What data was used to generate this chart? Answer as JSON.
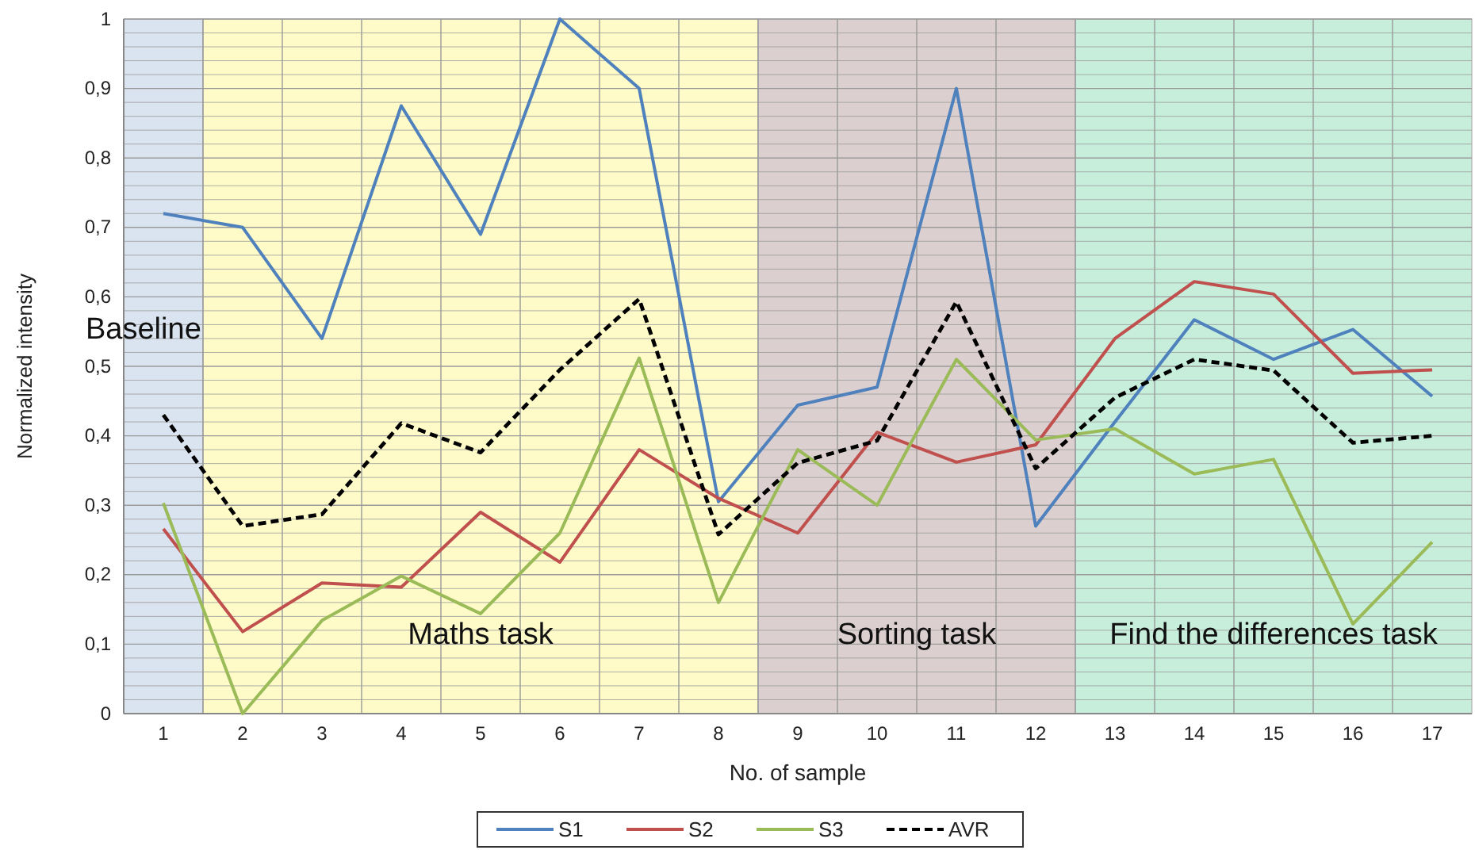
{
  "chart_data": {
    "type": "line",
    "xlabel": "No. of sample",
    "ylabel": "Normalized intensity",
    "x": [
      1,
      2,
      3,
      4,
      5,
      6,
      7,
      8,
      9,
      10,
      11,
      12,
      13,
      14,
      15,
      16,
      17
    ],
    "xlim": [
      0.5,
      17.5
    ],
    "xticks": [
      1,
      2,
      3,
      4,
      5,
      6,
      7,
      8,
      9,
      10,
      11,
      12,
      13,
      14,
      15,
      16,
      17
    ],
    "ylim": [
      0,
      1
    ],
    "yticks": [
      0,
      {
        "value": 0.1,
        "label": "0,1"
      },
      {
        "value": 0.2,
        "label": "0,2"
      },
      {
        "value": 0.3,
        "label": "0,3"
      },
      {
        "value": 0.4,
        "label": "0,4"
      },
      {
        "value": 0.5,
        "label": "0,5"
      },
      {
        "value": 0.6,
        "label": "0,6"
      },
      {
        "value": 0.7,
        "label": "0,7"
      },
      {
        "value": 0.8,
        "label": "0,8"
      },
      {
        "value": 0.9,
        "label": "0,9"
      },
      1
    ],
    "grid": true,
    "legend": "bottom",
    "marker": "none",
    "series": [
      {
        "name": "S1",
        "color": "#4f81bd",
        "values": [
          0.72,
          0.7,
          0.54,
          0.875,
          0.69,
          1.0,
          0.9,
          0.305,
          0.444,
          0.47,
          0.9,
          0.27,
          0.42,
          0.567,
          0.51,
          0.553,
          0.457
        ]
      },
      {
        "name": "S2",
        "color": "#c0504d",
        "values": [
          0.266,
          0.118,
          0.188,
          0.182,
          0.29,
          0.218,
          0.38,
          0.31,
          0.26,
          0.405,
          0.362,
          0.387,
          0.54,
          0.622,
          0.604,
          0.49,
          0.495
        ]
      },
      {
        "name": "S3",
        "color": "#9bbb59",
        "values": [
          0.303,
          0,
          0.134,
          0.198,
          0.144,
          0.26,
          0.512,
          0.16,
          0.38,
          0.3,
          0.51,
          0.394,
          0.41,
          0.345,
          0.366,
          0.129,
          0.247
        ]
      },
      {
        "name": "AVR",
        "color": "#000000",
        "line_style": "dashed",
        "values": [
          0.43,
          0.27,
          0.287,
          0.418,
          0.376,
          0.495,
          0.597,
          0.258,
          0.361,
          0.393,
          0.593,
          0.353,
          0.455,
          0.51,
          0.494,
          0.39,
          0.4
        ]
      }
    ],
    "bands": [
      {
        "axis": "x",
        "from": 0.5,
        "to": 1.5,
        "label": "Baseline",
        "color": "#dae3f0"
      },
      {
        "axis": "x",
        "from": 1.5,
        "to": 8.5,
        "label": "Maths task",
        "color": "#fefbc8"
      },
      {
        "axis": "x",
        "from": 8.5,
        "to": 12.5,
        "label": "Sorting task",
        "color": "#dccfcf"
      },
      {
        "axis": "x",
        "from": 12.5,
        "to": 17.5,
        "label": "Find the differences task",
        "color": "#c7eedb"
      }
    ]
  }
}
